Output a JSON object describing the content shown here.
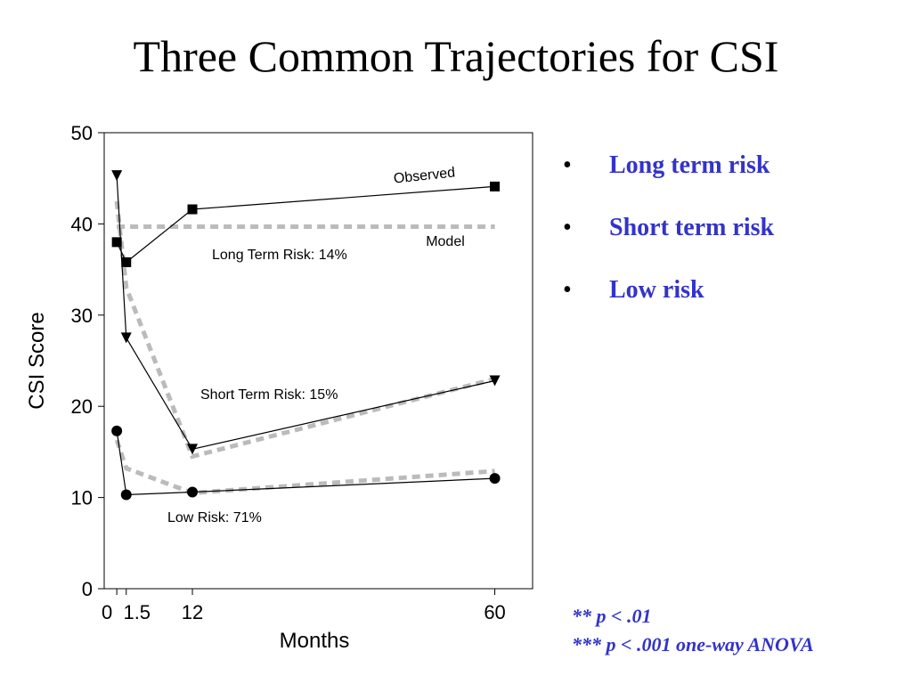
{
  "slide": {
    "title": "Three Common Trajectories for CSI",
    "bullets": [
      "Long term risk",
      "Short term risk",
      "Low risk"
    ],
    "notes": [
      "** p < .01",
      "*** p < .001 one-way ANOVA"
    ],
    "bullet_color": "#3333cc"
  },
  "chart_data": {
    "type": "line",
    "xlabel": "Months",
    "ylabel": "CSI Score",
    "x_ticks": [
      0,
      1.5,
      12,
      60
    ],
    "y_ticks": [
      0,
      10,
      20,
      30,
      40,
      50
    ],
    "xlim": [
      -2,
      66
    ],
    "ylim": [
      0,
      50
    ],
    "series": [
      {
        "name": "Long Term Risk: 14%",
        "marker": "square",
        "observed": [
          [
            0,
            38
          ],
          [
            1.5,
            35.8
          ],
          [
            12,
            41.6
          ],
          [
            60,
            44.1
          ]
        ],
        "model": [
          [
            0,
            39.7
          ],
          [
            1.5,
            39.7
          ],
          [
            12,
            39.7
          ],
          [
            60,
            39.7
          ]
        ]
      },
      {
        "name": "Short Term Risk: 15%",
        "marker": "triangle-down",
        "observed": [
          [
            0,
            45.3
          ],
          [
            1.5,
            27.5
          ],
          [
            12,
            15.3
          ],
          [
            60,
            22.8
          ]
        ],
        "model": [
          [
            0,
            42.5
          ],
          [
            1.5,
            33
          ],
          [
            12,
            14.5
          ],
          [
            60,
            23
          ]
        ]
      },
      {
        "name": "Low Risk: 71%",
        "marker": "circle",
        "observed": [
          [
            0,
            17.3
          ],
          [
            1.5,
            10.3
          ],
          [
            12,
            10.6
          ],
          [
            60,
            12.1
          ]
        ],
        "model": [
          [
            0,
            16.3
          ],
          [
            1.5,
            13.2
          ],
          [
            12,
            10.5
          ],
          [
            60,
            12.9
          ]
        ]
      }
    ],
    "annotations": {
      "observed": "Observed",
      "model": "Model"
    },
    "observed_color": "#000000",
    "model_color": "#bbbbbb"
  }
}
